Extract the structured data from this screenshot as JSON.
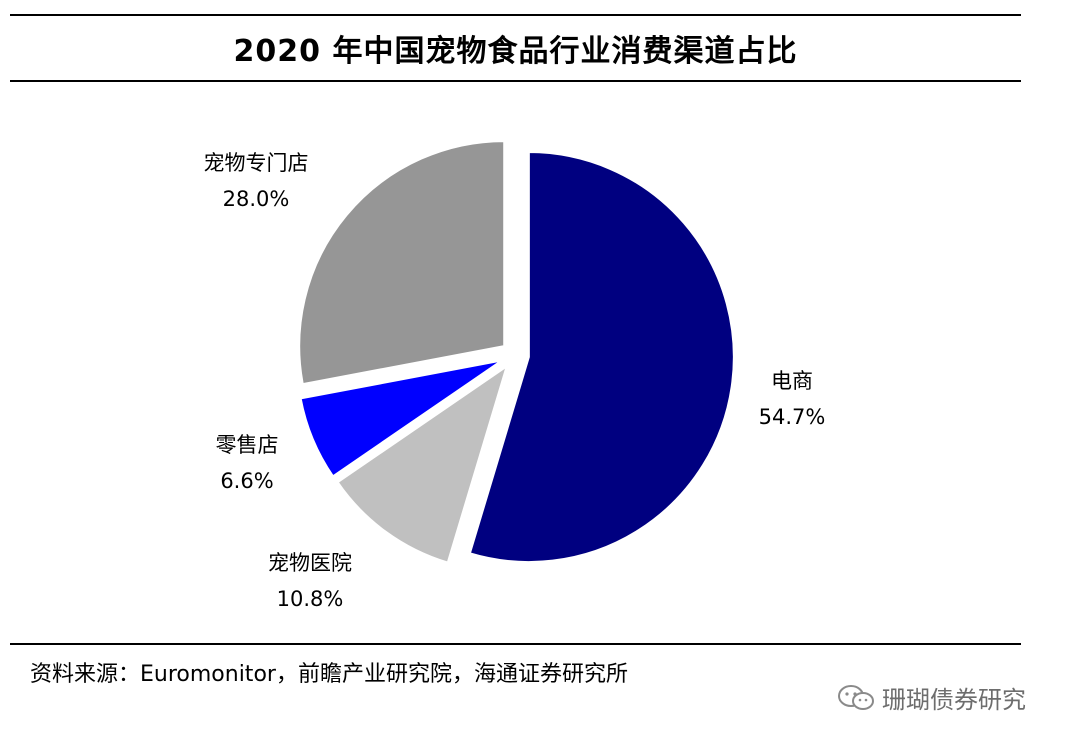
{
  "chart_data": {
    "type": "pie",
    "title": "2020 年中国宠物食品行业消费渠道占比",
    "slices": [
      {
        "name": "电商",
        "value": 54.7,
        "label": "54.7%",
        "color": "#000080"
      },
      {
        "name": "宠物医院",
        "value": 10.8,
        "label": "10.8%",
        "color": "#c0c0c0"
      },
      {
        "name": "零售店",
        "value": 6.6,
        "label": "6.6%",
        "color": "#0000ff"
      },
      {
        "name": "宠物专门店",
        "value": 28.0,
        "label": "28.0%",
        "color": "#969696"
      }
    ],
    "start": "12 o'clock",
    "direction": "clockwise",
    "exploded": true
  },
  "footer": {
    "source": "资料来源：Euromonitor，前瞻产业研究院，海通证券研究所"
  },
  "watermark": {
    "text": "珊瑚债券研究",
    "icon": "wechat-icon"
  }
}
